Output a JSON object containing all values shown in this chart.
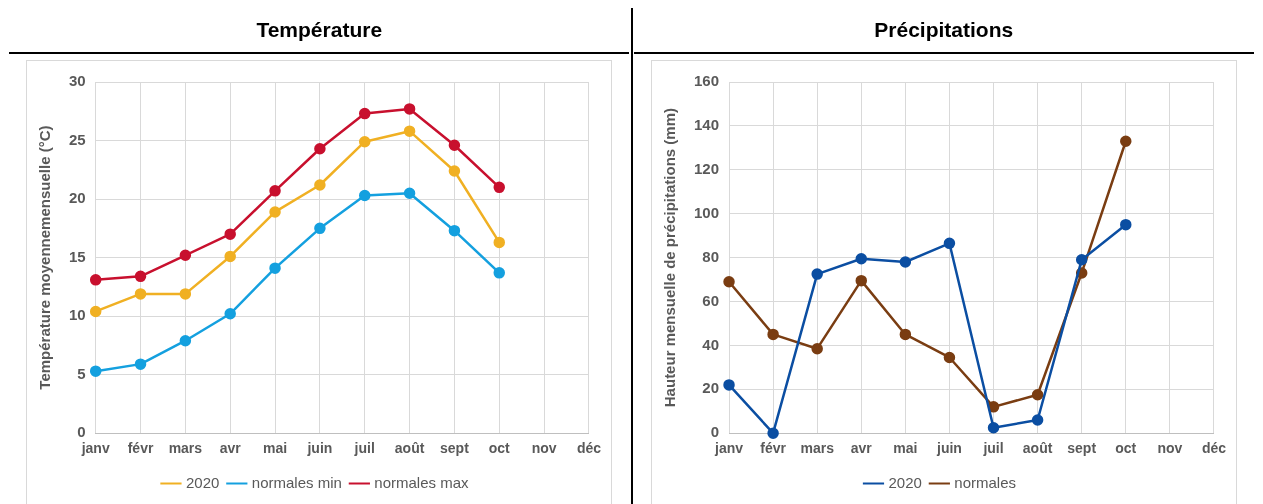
{
  "chart_data": [
    {
      "type": "line",
      "title": "Température",
      "ylabel": "Température moyennemensuelle (°C)",
      "categories": [
        "janv",
        "févr",
        "mars",
        "avr",
        "mai",
        "juin",
        "juil",
        "août",
        "sept",
        "oct",
        "nov",
        "déc"
      ],
      "ylim": [
        0,
        30
      ],
      "yticks": [
        0,
        5,
        10,
        15,
        20,
        25,
        30
      ],
      "grid": true,
      "legend": "bottom",
      "marker": "circle",
      "series": [
        {
          "name": "2020",
          "color": "#f0b023",
          "values": [
            10.4,
            11.9,
            11.9,
            15.1,
            18.9,
            21.2,
            24.9,
            25.8,
            22.4,
            16.3,
            null,
            null
          ]
        },
        {
          "name": "normales min",
          "color": "#14a0df",
          "values": [
            5.3,
            5.9,
            7.9,
            10.2,
            14.1,
            17.5,
            20.3,
            20.5,
            17.3,
            13.7,
            null,
            null
          ]
        },
        {
          "name": "normales max",
          "color": "#c8102e",
          "values": [
            13.1,
            13.4,
            15.2,
            17.0,
            20.7,
            24.3,
            27.3,
            27.7,
            24.6,
            21.0,
            null,
            null
          ]
        }
      ]
    },
    {
      "type": "line",
      "title": "Précipitations",
      "ylabel": "Hauteur mensuelle de précipitations (mm)",
      "categories": [
        "janv",
        "févr",
        "mars",
        "avr",
        "mai",
        "juin",
        "juil",
        "août",
        "sept",
        "oct",
        "nov",
        "déc"
      ],
      "ylim": [
        0,
        160
      ],
      "yticks": [
        0,
        20,
        40,
        60,
        80,
        100,
        120,
        140,
        160
      ],
      "grid": true,
      "legend": "bottom",
      "marker": "circle",
      "series": [
        {
          "name": "2020",
          "color": "#0b4ea2",
          "values": [
            22,
            0,
            72.5,
            79.5,
            78,
            86.5,
            2.5,
            6,
            79,
            95,
            null,
            null
          ]
        },
        {
          "name": "normales",
          "color": "#7a3d12",
          "values": [
            69,
            45,
            38.5,
            69.5,
            45,
            34.5,
            12,
            17.5,
            73,
            133,
            null,
            null
          ]
        }
      ]
    }
  ]
}
